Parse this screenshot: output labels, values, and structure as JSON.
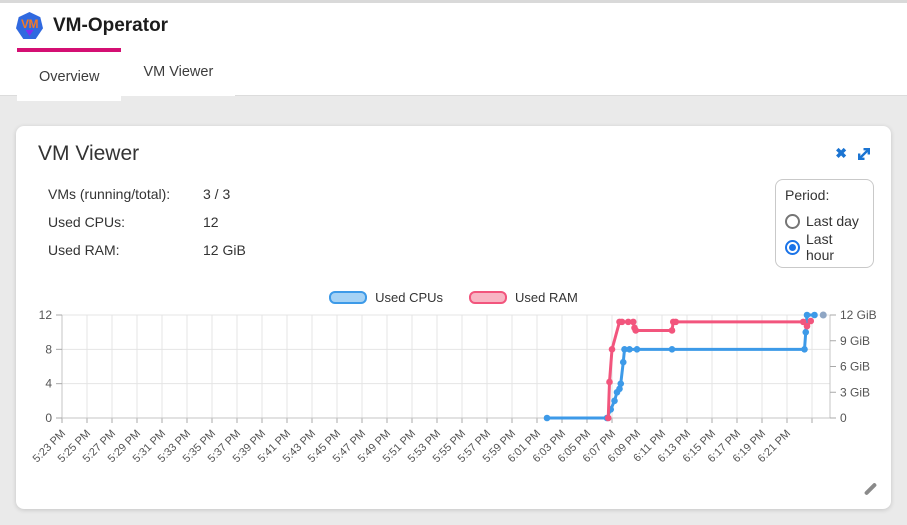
{
  "header": {
    "title": "VM-Operator",
    "logo_text": "VM"
  },
  "tabs": [
    {
      "label": "Overview",
      "active": true
    },
    {
      "label": "VM Viewer",
      "active": false
    }
  ],
  "icons": {
    "close_glyph": "✖"
  },
  "colors": {
    "tab_indicator": "#d40f73",
    "icon_blue": "#1b74d2",
    "radio_selected": "#1a73e8",
    "cpu_line": "#3d9ae8",
    "ram_line": "#f2557d"
  },
  "card": {
    "title": "VM Viewer",
    "stats": [
      {
        "label": "VMs (running/total):",
        "value": "3 / 3"
      },
      {
        "label": "Used CPUs:",
        "value": "12"
      },
      {
        "label": "Used RAM:",
        "value": "12 GiB"
      }
    ],
    "period": {
      "label": "Period:",
      "options": [
        {
          "label": "Last day",
          "selected": false
        },
        {
          "label": "Last hour",
          "selected": true
        }
      ]
    }
  },
  "chart_data": {
    "type": "line",
    "x_unit": "t = minutes after 5:23 PM, ticks every 2 minutes",
    "x_labels": [
      "5:23 PM",
      "5:25 PM",
      "5:27 PM",
      "5:29 PM",
      "5:31 PM",
      "5:33 PM",
      "5:35 PM",
      "5:37 PM",
      "5:39 PM",
      "5:41 PM",
      "5:43 PM",
      "5:45 PM",
      "5:47 PM",
      "5:49 PM",
      "5:51 PM",
      "5:53 PM",
      "5:55 PM",
      "5:57 PM",
      "5:59 PM",
      "6:01 PM",
      "6:03 PM",
      "6:05 PM",
      "6:07 PM",
      "6:09 PM",
      "6:11 PM",
      "6:13 PM",
      "6:15 PM",
      "6:17 PM",
      "6:19 PM",
      "6:21 PM"
    ],
    "left_axis": {
      "ticks": [
        0,
        4,
        8,
        12
      ],
      "range": [
        0,
        12
      ],
      "series": "Used CPUs"
    },
    "right_axis": {
      "ticks": [
        {
          "v": 0,
          "label": "0"
        },
        {
          "v": 3,
          "label": "3 GiB"
        },
        {
          "v": 6,
          "label": "6 GiB"
        },
        {
          "v": 9,
          "label": "9 GiB"
        },
        {
          "v": 12,
          "label": "12 GiB"
        }
      ],
      "range": [
        0,
        12
      ],
      "series": "Used RAM"
    },
    "legend": [
      {
        "name": "Used CPUs",
        "stroke": "#3d9ae8",
        "fill": "#a5d2f5"
      },
      {
        "name": "Used RAM",
        "stroke": "#f2557d",
        "fill": "#f8b5c4"
      }
    ],
    "series": [
      {
        "name": "Used CPUs",
        "axis": "left",
        "color": "#3d9ae8",
        "points": [
          [
            38.8,
            0
          ],
          [
            43.6,
            0
          ],
          [
            43.9,
            1
          ],
          [
            44.2,
            2
          ],
          [
            44.4,
            3
          ],
          [
            44.6,
            3.4
          ],
          [
            44.7,
            4
          ],
          [
            44.9,
            6.5
          ],
          [
            45.0,
            8
          ],
          [
            45.4,
            8
          ],
          [
            46.0,
            8
          ],
          [
            48.8,
            8
          ],
          [
            59.4,
            8
          ],
          [
            59.5,
            10
          ],
          [
            59.6,
            12
          ],
          [
            60.2,
            12
          ]
        ]
      },
      {
        "name": "Used RAM",
        "axis": "right",
        "color": "#f2557d",
        "points": [
          [
            43.7,
            0
          ],
          [
            43.8,
            4.2
          ],
          [
            44.0,
            8
          ],
          [
            44.6,
            11.2
          ],
          [
            44.8,
            11.2
          ],
          [
            45.3,
            11.2
          ],
          [
            45.7,
            11.2
          ],
          [
            45.8,
            10.5
          ],
          [
            45.9,
            10.2
          ],
          [
            48.8,
            10.2
          ],
          [
            48.9,
            11.2
          ],
          [
            49.1,
            11.2
          ],
          [
            59.3,
            11.2
          ],
          [
            59.6,
            10.7
          ],
          [
            59.9,
            11.3
          ]
        ]
      }
    ],
    "end_marker": {
      "series": "Used CPUs",
      "t": 60.9,
      "v": 12,
      "color": "#8fa6c4"
    },
    "grid": true,
    "legend_position": "top-center"
  }
}
